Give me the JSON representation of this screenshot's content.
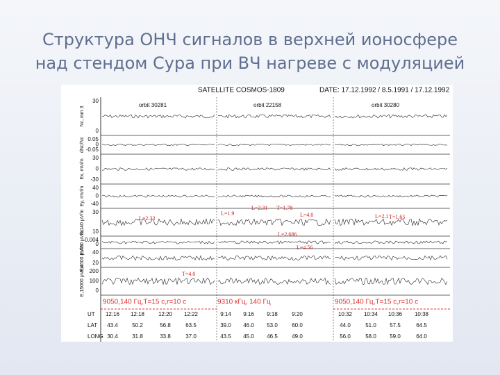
{
  "title": [
    "Структура ОНЧ сигналов в верхней ионосфере",
    "над стендом Сура при ВЧ нагреве с модуляцией"
  ],
  "figure": {
    "header": {
      "satellite": "SATELLITE  COSMOS-1809",
      "date": "DATE: 17.12.1992 / 8.5.1991 / 17.12.1992"
    },
    "orbits": [
      "orbit  30281",
      "orbit  22158",
      "orbit  30280"
    ],
    "panel_labels": [
      "Nc, mm 3",
      "dNc/Nc",
      "Ex, mV/m",
      "Ey, mV/m",
      "B,140 μV/m",
      "E,450 μV/m",
      "E,4600 μV/m",
      "E,15000 μV/m"
    ],
    "ticks": [
      [
        "30",
        "0"
      ],
      [
        "0.05",
        "0",
        "-0.05"
      ],
      [
        "30",
        "0",
        "-30"
      ],
      [
        "40",
        "0",
        "-40"
      ],
      [
        "30",
        "10"
      ],
      [
        "0.004",
        "0"
      ],
      [
        "40",
        "20"
      ],
      [
        "200",
        "100",
        "0"
      ]
    ],
    "annotations": [
      "L=2.33",
      "L=1.9",
      "L=2.31",
      "T=1.78",
      "L=4.0",
      "L=2.686",
      "L=4.56",
      "L=2.1",
      "T=1.65",
      "T=4.0"
    ],
    "modulation": [
      "9050,140 Гц,T=15 c,r=10 c",
      "9310 кГц, 140 Гц",
      "9050,140 Гц,T=15 c,r=10 c"
    ],
    "table": {
      "rows": [
        {
          "label": "UT",
          "values": [
            "12:16",
            "12:18",
            "12:20",
            "12:22",
            "9:14",
            "9:16",
            "9:18",
            "9:20",
            "10:32",
            "10:34",
            "10:36",
            "10:38"
          ]
        },
        {
          "label": "LAT",
          "values": [
            "43.4",
            "50.2",
            "56.8",
            "63.5",
            "39.0",
            "46.0",
            "53.0",
            "60.0",
            "44.0",
            "51.0",
            "57.5",
            "64.5"
          ]
        },
        {
          "label": "LONG",
          "values": [
            "30.4",
            "31.8",
            "33.8",
            "37.0",
            "43.5",
            "45.0",
            "46.5",
            "49.0",
            "56.0",
            "58.0",
            "59.0",
            "64.0"
          ]
        }
      ]
    }
  }
}
